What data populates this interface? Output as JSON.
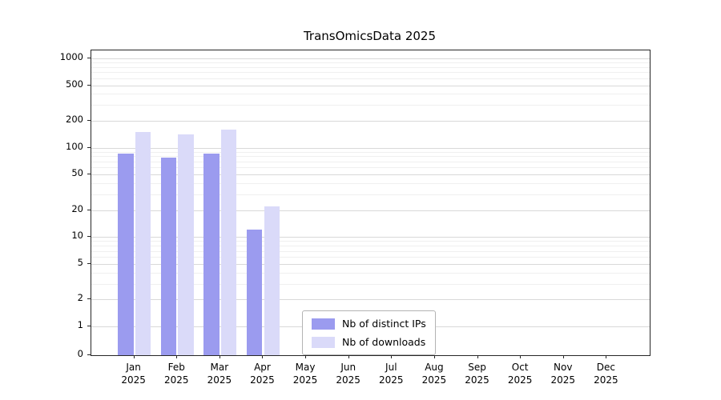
{
  "chart_data": {
    "type": "bar",
    "title": "TransOmicsData 2025",
    "categories": [
      "Jan",
      "Feb",
      "Mar",
      "Apr",
      "May",
      "Jun",
      "Jul",
      "Aug",
      "Sep",
      "Oct",
      "Nov",
      "Dec"
    ],
    "year": "2025",
    "series": [
      {
        "name": "Nb of distinct IPs",
        "color": "#9b9bef",
        "values": [
          85,
          78,
          85,
          12,
          0,
          0,
          0,
          0,
          0,
          0,
          0,
          0
        ]
      },
      {
        "name": "Nb of downloads",
        "color": "#dadaf9",
        "values": [
          150,
          140,
          160,
          22,
          0,
          0,
          0,
          0,
          0,
          0,
          0,
          0
        ]
      }
    ],
    "y_scale": "symlog",
    "y_ticks": [
      0,
      1,
      2,
      5,
      10,
      20,
      50,
      100,
      200,
      500,
      1000
    ],
    "ylim": [
      0,
      1200
    ],
    "grid": true,
    "legend_position": "inside-bottom-center"
  }
}
